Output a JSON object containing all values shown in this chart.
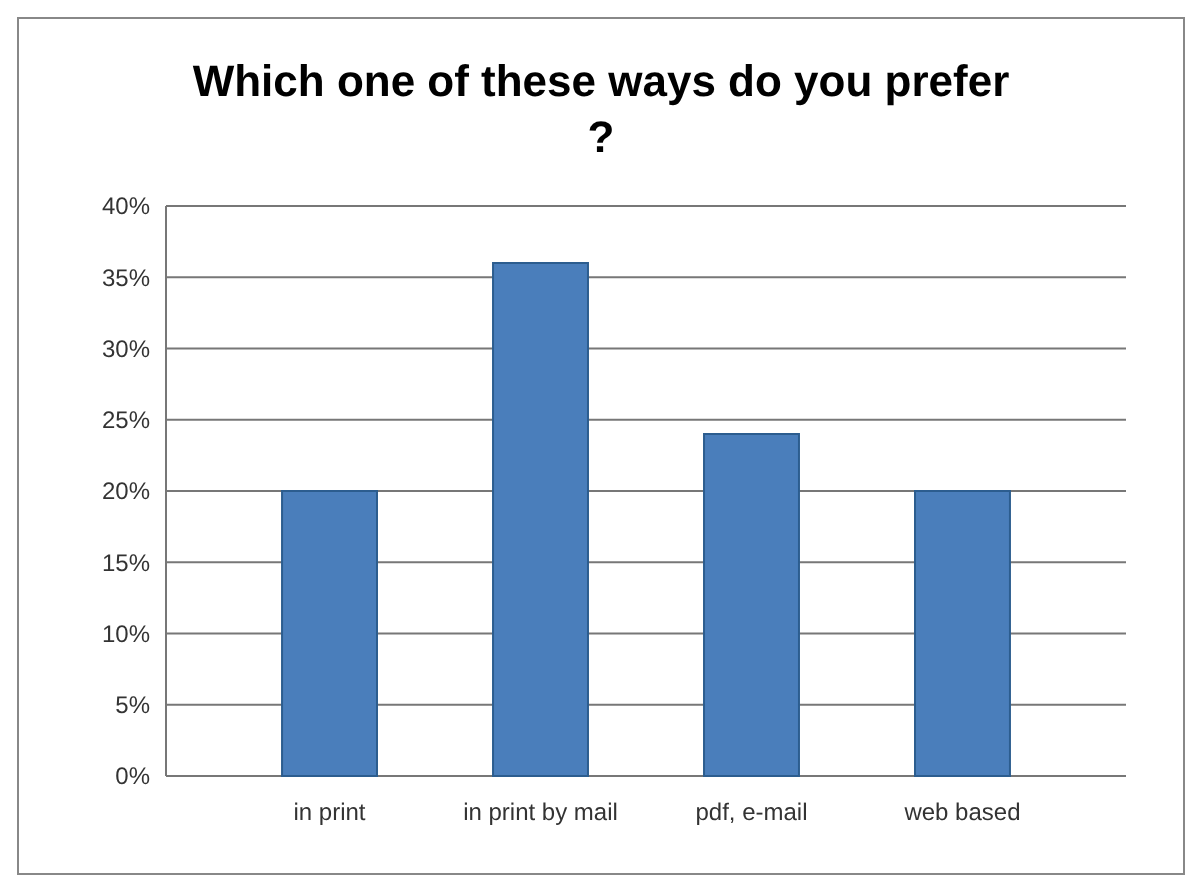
{
  "chart_data": {
    "type": "bar",
    "title": "Which one of these ways do you prefer ?",
    "categories": [
      "in print",
      "in print by mail",
      "pdf, e-mail",
      "web based"
    ],
    "values": [
      20,
      36,
      24,
      20
    ],
    "color": "#4a7ebb",
    "ylim": [
      0,
      40
    ],
    "yticks": [
      {
        "value": 0,
        "label": "0%"
      },
      {
        "value": 5,
        "label": "5%"
      },
      {
        "value": 10,
        "label": "10%"
      },
      {
        "value": 15,
        "label": "15%"
      },
      {
        "value": 20,
        "label": "20%"
      },
      {
        "value": 25,
        "label": "25%"
      },
      {
        "value": 30,
        "label": "30%"
      },
      {
        "value": 35,
        "label": "35%"
      },
      {
        "value": 40,
        "label": "40%"
      }
    ],
    "grid": "y"
  }
}
